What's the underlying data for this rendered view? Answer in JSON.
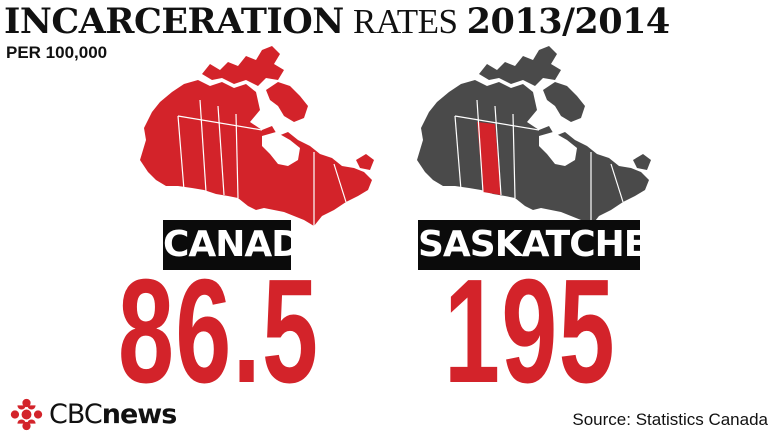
{
  "title": {
    "strong": "INCARCERATION",
    "light": "RATES",
    "year": "2013/2014"
  },
  "subtitle": "PER 100,000",
  "panels": [
    {
      "region": "CANADA",
      "rate": "86.5",
      "map_color": "#d3232a",
      "highlight_color": "#d3232a"
    },
    {
      "region": "SASKATCHEWAN",
      "rate": "195",
      "map_color": "#4a4a4a",
      "highlight_color": "#d3232a"
    }
  ],
  "colors": {
    "accent_red": "#d3232a",
    "label_bg": "#0b0b0b",
    "text": "#111111"
  },
  "logo": {
    "icon": "cbc-gem-icon",
    "brand_light": "CBC",
    "brand_bold": "news"
  },
  "source": "Source: Statistics Canada"
}
